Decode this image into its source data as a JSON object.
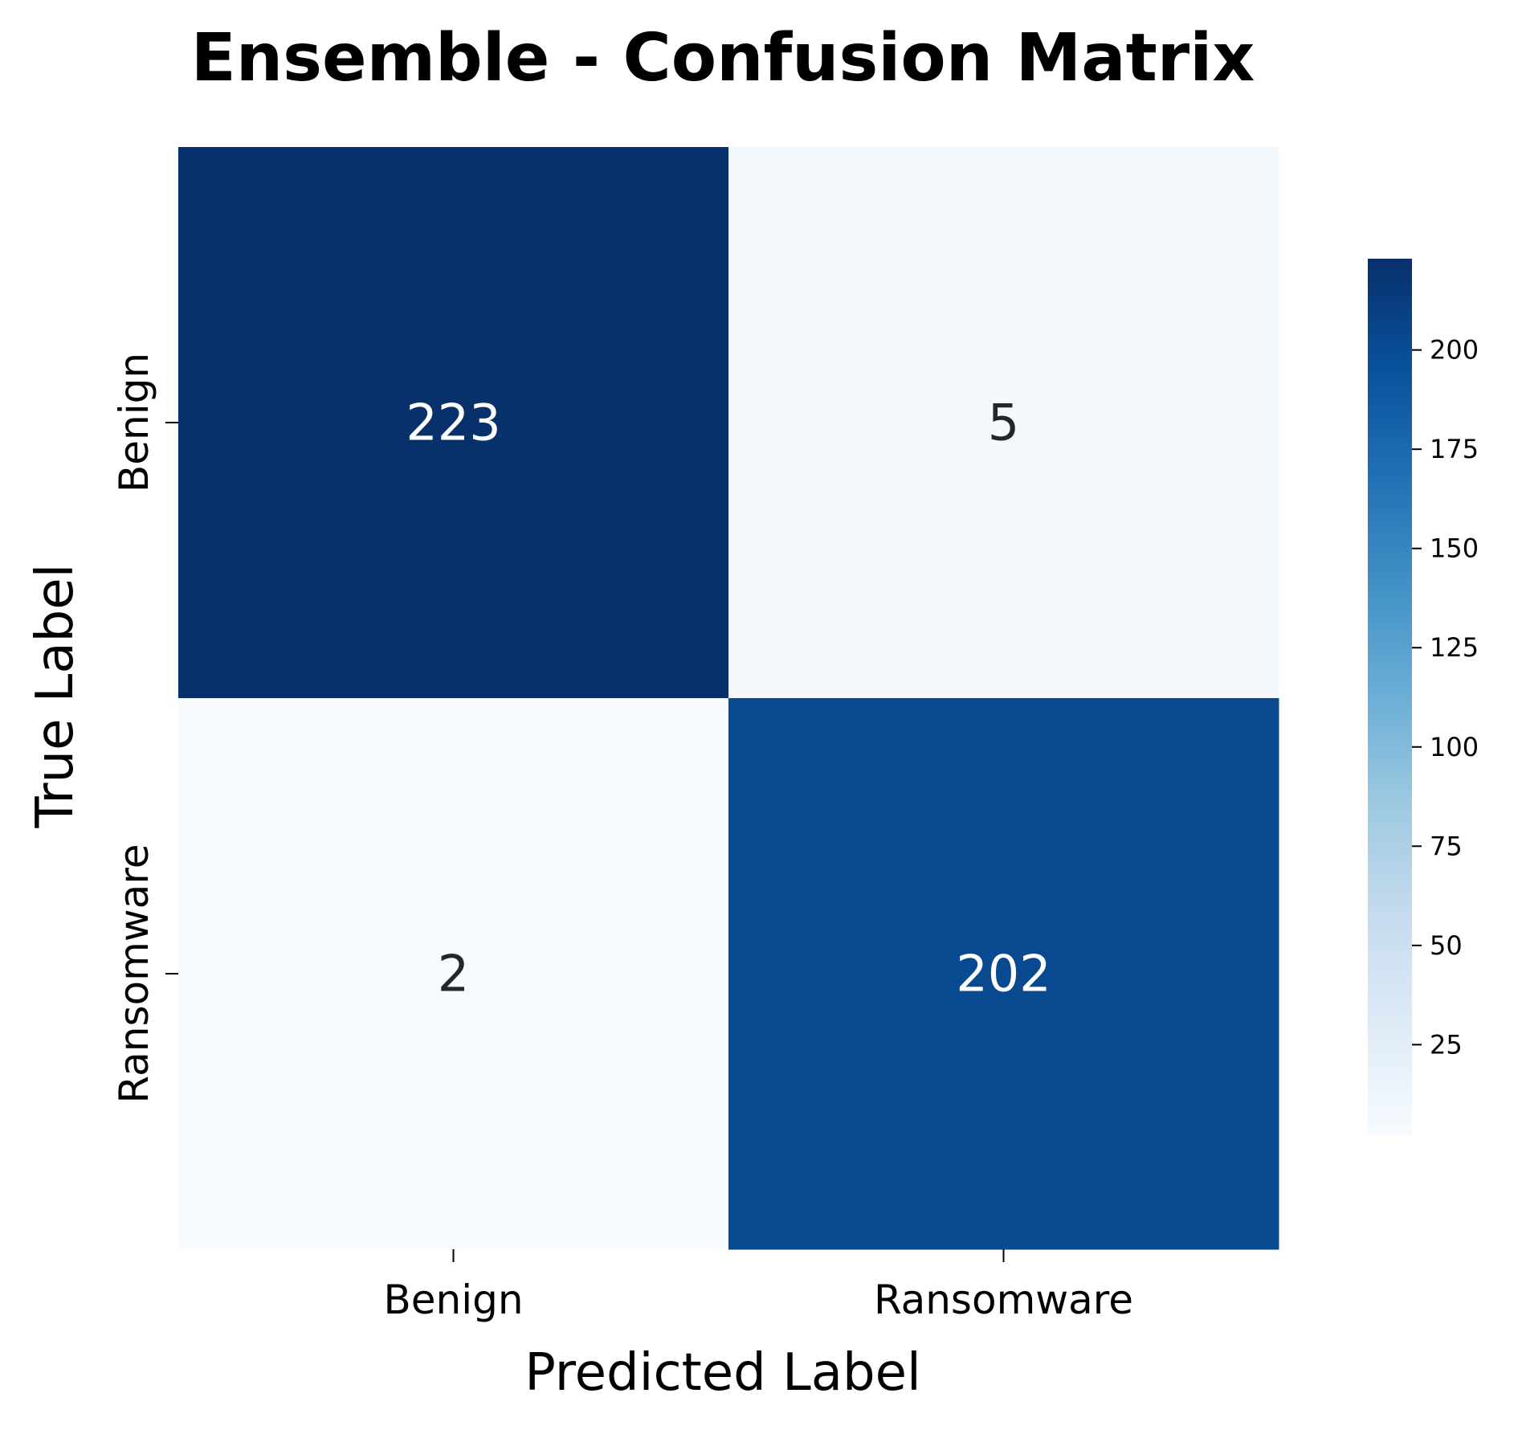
{
  "chart_data": {
    "type": "heatmap",
    "title": "Ensemble - Confusion Matrix",
    "xlabel": "Predicted Label",
    "ylabel": "True Label",
    "x_categories": [
      "Benign",
      "Ransomware"
    ],
    "y_categories": [
      "Benign",
      "Ransomware"
    ],
    "matrix": [
      [
        223,
        5
      ],
      [
        2,
        202
      ]
    ],
    "colormap": "Blues",
    "colorbar": {
      "min": 2,
      "max": 223,
      "ticks": [
        25,
        50,
        75,
        100,
        125,
        150,
        175,
        200
      ]
    },
    "colors": {
      "dark_text": "#262626",
      "light_text": "#ffffff"
    }
  }
}
